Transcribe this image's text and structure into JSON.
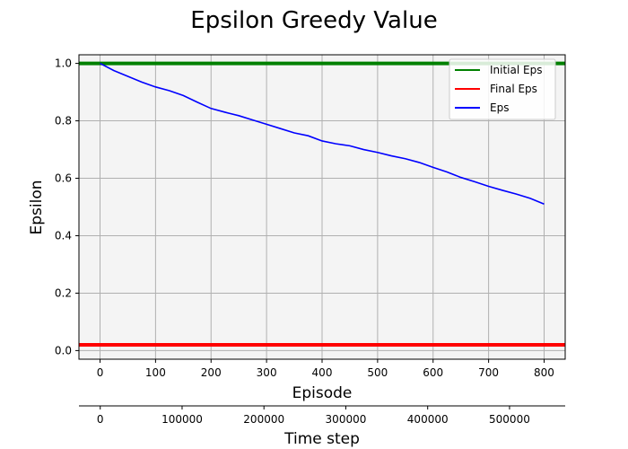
{
  "chart_data": {
    "type": "line",
    "title": "Epsilon Greedy Value",
    "xlabel": "Episode",
    "ylabel": "Epsilon",
    "secondary_xlabel": "Time step",
    "xlim": [
      -38,
      838
    ],
    "ylim": [
      -0.03,
      1.03
    ],
    "x_ticks": [
      0,
      100,
      200,
      300,
      400,
      500,
      600,
      700,
      800
    ],
    "x_tick_labels": [
      "0",
      "100",
      "200",
      "300",
      "400",
      "500",
      "600",
      "700",
      "800"
    ],
    "y_ticks": [
      0.0,
      0.2,
      0.4,
      0.6,
      0.8,
      1.0
    ],
    "y_tick_labels": [
      "0.0",
      "0.2",
      "0.4",
      "0.6",
      "0.8",
      "1.0"
    ],
    "secondary_x_ticks": [
      0,
      100000,
      200000,
      300000,
      400000,
      500000
    ],
    "secondary_x_tick_labels": [
      "0",
      "100000",
      "200000",
      "300000",
      "400000",
      "500000"
    ],
    "secondary_xlim": [
      -26000,
      568000
    ],
    "grid": true,
    "legend_position": "top-right",
    "series": [
      {
        "name": "Initial Eps",
        "color": "#008000",
        "kind": "hline",
        "y": 1.0
      },
      {
        "name": "Final Eps",
        "color": "#ff0000",
        "kind": "hline",
        "y": 0.02
      },
      {
        "name": "Eps",
        "color": "#0000ff",
        "kind": "line",
        "x": [
          0,
          25,
          50,
          75,
          100,
          125,
          150,
          175,
          200,
          225,
          250,
          275,
          300,
          325,
          350,
          375,
          400,
          425,
          450,
          475,
          500,
          525,
          550,
          575,
          600,
          625,
          650,
          675,
          700,
          725,
          750,
          775,
          800
        ],
        "y": [
          1.0,
          0.975,
          0.955,
          0.935,
          0.918,
          0.905,
          0.888,
          0.865,
          0.843,
          0.83,
          0.818,
          0.803,
          0.788,
          0.773,
          0.758,
          0.748,
          0.73,
          0.72,
          0.713,
          0.7,
          0.69,
          0.678,
          0.668,
          0.655,
          0.638,
          0.622,
          0.603,
          0.588,
          0.572,
          0.558,
          0.545,
          0.53,
          0.51
        ]
      }
    ]
  }
}
